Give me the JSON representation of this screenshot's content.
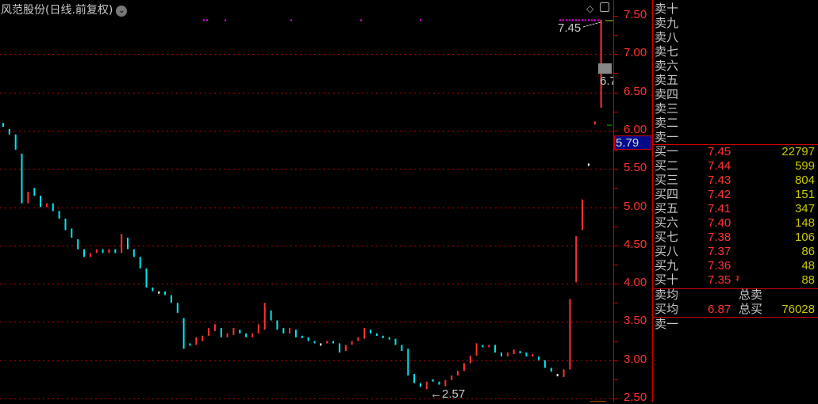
{
  "header": {
    "title": "风范股份(日线.前复权)",
    "dropdown_icon": "chevron-down-icon"
  },
  "toolbar_icons": [
    "diamond-icon",
    "panel-toggle-icon"
  ],
  "annotations": {
    "high_label": "7.45",
    "low_label": "←2.57",
    "last_price_label": "6.7"
  },
  "colors": {
    "up": "#ff3232",
    "down": "#00e8f0",
    "flat": "#ffffff",
    "grid": "#c00000",
    "volume": "#c8c800"
  },
  "chart_data": {
    "type": "candlestick",
    "y_axis": {
      "ticks": [
        "7.50",
        "7.00",
        "6.50",
        "6.00",
        "5.50",
        "5.00",
        "4.50",
        "4.00",
        "3.50",
        "3.00",
        "2.50"
      ],
      "ylim": [
        2.5,
        7.6
      ]
    },
    "current_price": "5.79",
    "grid": true,
    "candles": [
      [
        6.1,
        6.05
      ],
      [
        6.02,
        5.95
      ],
      [
        5.95,
        5.75
      ],
      [
        5.7,
        5.05
      ],
      [
        5.05,
        5.2
      ],
      [
        5.25,
        5.15
      ],
      [
        5.15,
        5.0
      ],
      [
        5.0,
        5.05
      ],
      [
        5.05,
        4.95
      ],
      [
        4.95,
        4.85
      ],
      [
        4.85,
        4.7
      ],
      [
        4.72,
        4.6
      ],
      [
        4.58,
        4.45
      ],
      [
        4.45,
        4.35
      ],
      [
        4.35,
        4.4
      ],
      [
        4.4,
        4.45
      ],
      [
        4.45,
        4.4
      ],
      [
        4.4,
        4.45
      ],
      [
        4.45,
        4.4
      ],
      [
        4.4,
        4.65
      ],
      [
        4.6,
        4.45
      ],
      [
        4.45,
        4.35
      ],
      [
        4.35,
        4.2
      ],
      [
        4.2,
        3.95
      ],
      [
        3.95,
        3.9
      ],
      [
        3.9,
        3.9
      ],
      [
        3.9,
        3.85
      ],
      [
        3.85,
        3.75
      ],
      [
        3.75,
        3.62
      ],
      [
        3.55,
        3.15
      ],
      [
        3.22,
        3.2
      ],
      [
        3.2,
        3.3
      ],
      [
        3.25,
        3.32
      ],
      [
        3.32,
        3.42
      ],
      [
        3.38,
        3.47
      ],
      [
        3.42,
        3.3
      ],
      [
        3.3,
        3.35
      ],
      [
        3.33,
        3.42
      ],
      [
        3.4,
        3.35
      ],
      [
        3.35,
        3.3
      ],
      [
        3.3,
        3.35
      ],
      [
        3.35,
        3.47
      ],
      [
        3.4,
        3.75
      ],
      [
        3.65,
        3.52
      ],
      [
        3.52,
        3.4
      ],
      [
        3.42,
        3.35
      ],
      [
        3.35,
        3.42
      ],
      [
        3.4,
        3.3
      ],
      [
        3.32,
        3.3
      ],
      [
        3.3,
        3.25
      ],
      [
        3.25,
        3.22
      ],
      [
        3.22,
        3.22
      ],
      [
        3.22,
        3.25
      ],
      [
        3.25,
        3.22
      ],
      [
        3.22,
        3.1
      ],
      [
        3.12,
        3.2
      ],
      [
        3.2,
        3.25
      ],
      [
        3.25,
        3.3
      ],
      [
        3.28,
        3.42
      ],
      [
        3.4,
        3.35
      ],
      [
        3.35,
        3.32
      ],
      [
        3.32,
        3.3
      ],
      [
        3.3,
        3.28
      ],
      [
        3.28,
        3.2
      ],
      [
        3.2,
        3.12
      ],
      [
        3.15,
        2.8
      ],
      [
        2.82,
        2.7
      ],
      [
        2.7,
        2.65
      ],
      [
        2.62,
        2.72
      ],
      [
        2.75,
        2.72
      ],
      [
        2.72,
        2.68
      ],
      [
        2.66,
        2.74
      ],
      [
        2.74,
        2.8
      ],
      [
        2.8,
        2.86
      ],
      [
        2.86,
        2.96
      ],
      [
        2.96,
        3.06
      ],
      [
        3.06,
        3.22
      ],
      [
        3.2,
        3.18
      ],
      [
        3.18,
        3.2
      ],
      [
        3.2,
        3.1
      ],
      [
        3.1,
        3.05
      ],
      [
        3.05,
        3.1
      ],
      [
        3.08,
        3.14
      ],
      [
        3.12,
        3.1
      ],
      [
        3.1,
        3.05
      ],
      [
        3.05,
        3.08
      ],
      [
        3.05,
        3.0
      ],
      [
        3.0,
        2.9
      ],
      [
        2.9,
        2.85
      ],
      [
        2.82,
        2.82
      ],
      [
        2.78,
        2.88
      ],
      [
        2.88,
        3.8
      ],
      [
        4.02,
        4.62
      ],
      [
        4.7,
        5.1
      ],
      [
        5.57,
        5.57
      ],
      [
        6.08,
        6.12
      ],
      [
        6.3,
        7.45
      ]
    ]
  },
  "order_book": {
    "sell": [
      {
        "label": "卖十"
      },
      {
        "label": "卖九"
      },
      {
        "label": "卖八"
      },
      {
        "label": "卖七"
      },
      {
        "label": "卖六"
      },
      {
        "label": "卖五"
      },
      {
        "label": "卖四"
      },
      {
        "label": "卖三"
      },
      {
        "label": "卖二"
      },
      {
        "label": "卖一"
      }
    ],
    "buy": [
      {
        "label": "买一",
        "price": "7.45",
        "volume": "22797"
      },
      {
        "label": "买二",
        "price": "7.44",
        "volume": "599"
      },
      {
        "label": "买三",
        "price": "7.43",
        "volume": "804"
      },
      {
        "label": "买四",
        "price": "7.42",
        "volume": "151"
      },
      {
        "label": "买五",
        "price": "7.41",
        "volume": "347"
      },
      {
        "label": "买六",
        "price": "7.40",
        "volume": "148"
      },
      {
        "label": "买七",
        "price": "7.38",
        "volume": "106"
      },
      {
        "label": "买八",
        "price": "7.37",
        "volume": "86"
      },
      {
        "label": "买九",
        "price": "7.36",
        "volume": "48"
      },
      {
        "label": "买十",
        "price": "7.35",
        "volume": "88"
      }
    ],
    "summary": {
      "sell_avg_label": "卖均",
      "total_sell_label": "总卖",
      "buy_avg_label": "买均",
      "buy_avg": "6.87",
      "total_buy_label": "总买",
      "total_buy": "76028"
    },
    "footer_label": "卖一"
  }
}
